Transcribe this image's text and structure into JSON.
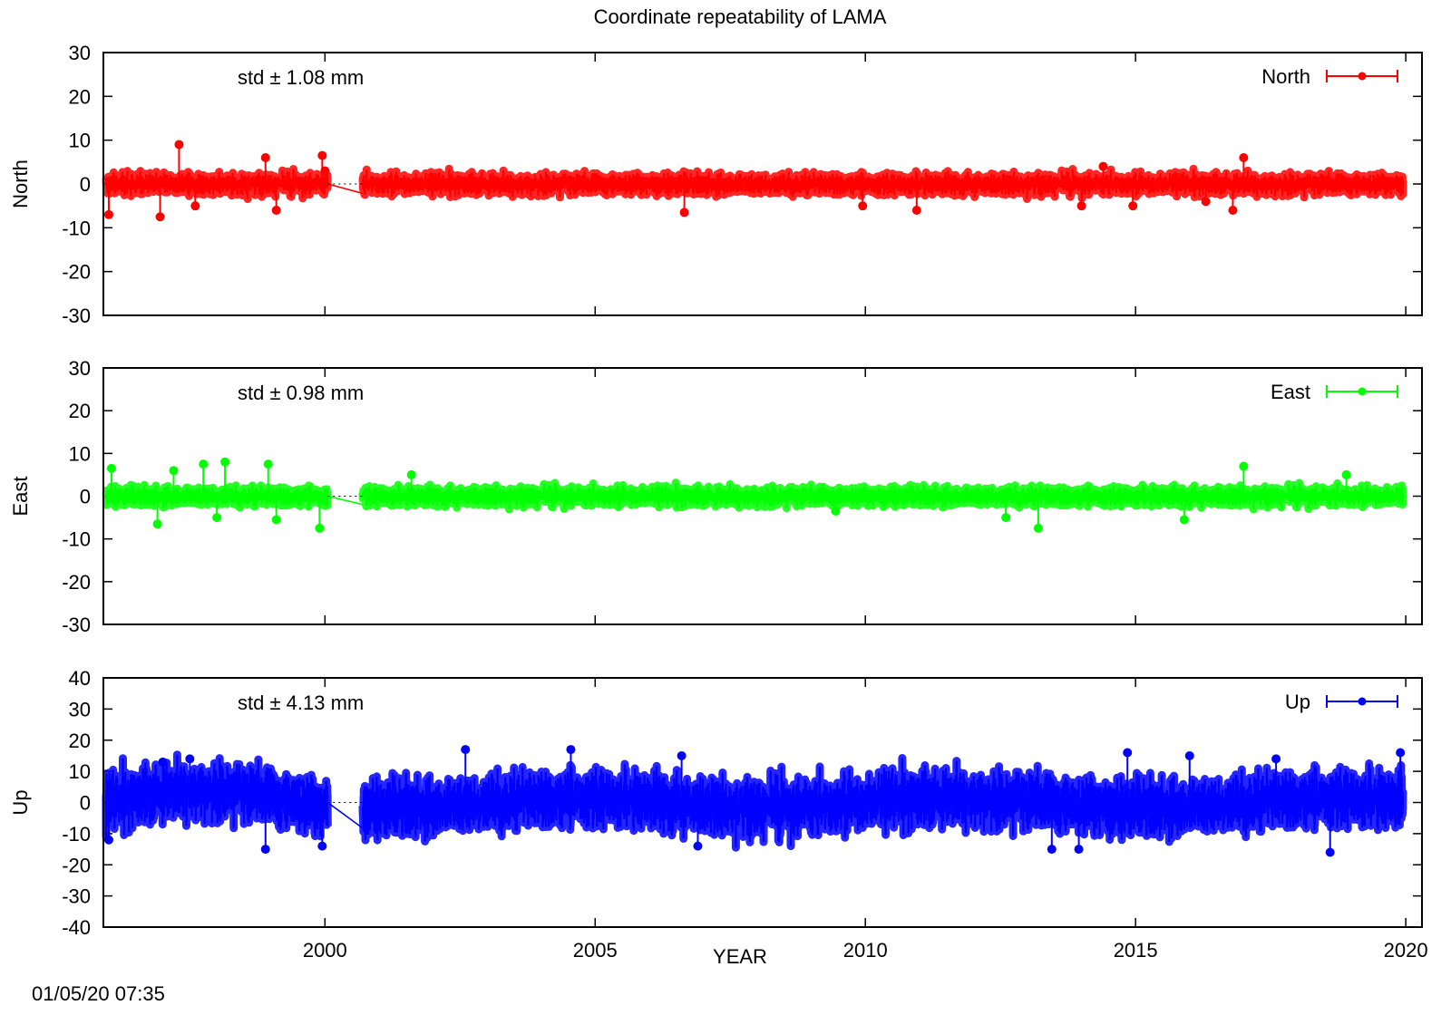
{
  "chart_data": [
    {
      "type": "scatter",
      "title": "Coordinate repeatability of LAMA",
      "ylabel": "North",
      "std_label": "std ± 1.08 mm",
      "legend": "North",
      "legend_position": "top-right",
      "color": "#ff0000",
      "xlim": [
        1995.9,
        2020.3
      ],
      "ylim": [
        -30,
        30
      ],
      "yticks": [
        30,
        20,
        10,
        0,
        -10,
        -20,
        -30
      ],
      "series": [
        {
          "name": "North",
          "segments": [
            [
              1995.95,
              2000.05
            ],
            [
              2000.7,
              2019.95
            ]
          ],
          "gap": [
            2000.05,
            2000.7
          ],
          "spread": 1.08,
          "outliers": [
            [
              1996.0,
              -7
            ],
            [
              1996.95,
              -7.5
            ],
            [
              1997.3,
              9
            ],
            [
              1997.6,
              -5
            ],
            [
              1998.9,
              6
            ],
            [
              1999.1,
              -6
            ],
            [
              1999.95,
              6.5
            ],
            [
              2000.0,
              3
            ],
            [
              2006.65,
              -6.5
            ],
            [
              2009.95,
              -5
            ],
            [
              2010.95,
              -6
            ],
            [
              2014.0,
              -5
            ],
            [
              2014.4,
              4
            ],
            [
              2014.95,
              -5
            ],
            [
              2016.3,
              -4
            ],
            [
              2016.8,
              -6
            ],
            [
              2017.0,
              6
            ]
          ]
        }
      ]
    },
    {
      "type": "scatter",
      "ylabel": "East",
      "std_label": "std ± 0.98 mm",
      "legend": "East",
      "legend_position": "top-right",
      "color": "#00ff00",
      "xlim": [
        1995.9,
        2020.3
      ],
      "ylim": [
        -30,
        30
      ],
      "yticks": [
        30,
        20,
        10,
        0,
        -10,
        -20,
        -30
      ],
      "series": [
        {
          "name": "East",
          "segments": [
            [
              1995.95,
              2000.05
            ],
            [
              2000.7,
              2019.95
            ]
          ],
          "gap": [
            2000.05,
            2000.7
          ],
          "spread": 0.98,
          "outliers": [
            [
              1996.05,
              6.5
            ],
            [
              1996.9,
              -6.5
            ],
            [
              1997.2,
              6
            ],
            [
              1997.75,
              7.5
            ],
            [
              1998.0,
              -5
            ],
            [
              1998.15,
              8
            ],
            [
              1998.95,
              7.5
            ],
            [
              1999.1,
              -5.5
            ],
            [
              1999.9,
              -7.5
            ],
            [
              2001.6,
              5
            ],
            [
              2009.45,
              -3.5
            ],
            [
              2012.6,
              -5
            ],
            [
              2013.2,
              -7.5
            ],
            [
              2015.9,
              -5.5
            ],
            [
              2017.0,
              7
            ],
            [
              2018.9,
              5
            ]
          ]
        }
      ]
    },
    {
      "type": "scatter",
      "ylabel": "Up",
      "xlabel": "YEAR",
      "std_label": "std ± 4.13 mm",
      "legend": "Up",
      "legend_position": "top-right",
      "color": "#0000ff",
      "xlim": [
        1995.9,
        2020.3
      ],
      "ylim": [
        -40,
        40
      ],
      "xticks": [
        2000,
        2005,
        2010,
        2015,
        2020
      ],
      "yticks": [
        40,
        30,
        20,
        10,
        0,
        -10,
        -20,
        -30,
        -40
      ],
      "series": [
        {
          "name": "Up",
          "segments": [
            [
              1995.95,
              2000.05
            ],
            [
              2000.7,
              2019.95
            ]
          ],
          "gap": [
            2000.05,
            2000.7
          ],
          "spread": 4.13,
          "outliers": [
            [
              1996.0,
              -12
            ],
            [
              1997.0,
              13
            ],
            [
              1997.5,
              14
            ],
            [
              1998.9,
              -15
            ],
            [
              1999.5,
              6
            ],
            [
              1999.95,
              -14
            ],
            [
              2002.6,
              17
            ],
            [
              2004.55,
              17
            ],
            [
              2006.6,
              15
            ],
            [
              2006.9,
              -14
            ],
            [
              2013.45,
              -15
            ],
            [
              2013.95,
              -15
            ],
            [
              2014.85,
              16
            ],
            [
              2016.0,
              15
            ],
            [
              2017.6,
              14
            ],
            [
              2018.6,
              -16
            ],
            [
              2019.9,
              16
            ]
          ]
        }
      ]
    }
  ],
  "timestamp": "01/05/20 07:35"
}
